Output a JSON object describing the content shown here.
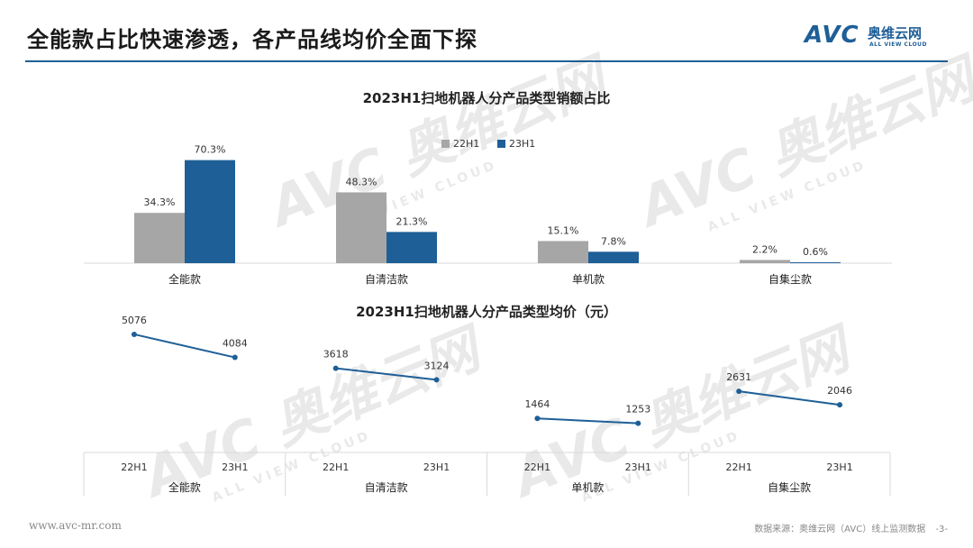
{
  "header": {
    "title": "全能款占比快速渗透，各产品线均价全面下探",
    "logo_mark": "AVC",
    "logo_cn": "奥维云网",
    "logo_en": "ALL VIEW CLOUD"
  },
  "watermark": {
    "main": "AVC 奥维云网",
    "sub": "ALL VIEW CLOUD"
  },
  "colors": {
    "series_22h1": "#a6a6a6",
    "series_23h1": "#1e5f97",
    "line": "#1e5f97",
    "rule": "#1e5f97"
  },
  "chart_data": [
    {
      "type": "bar",
      "title": "2023H1扫地机器人分产品类型销额占比",
      "legend_position": "top-right",
      "categories": [
        "全能款",
        "自清洁款",
        "单机款",
        "自集尘款"
      ],
      "series": [
        {
          "name": "22H1",
          "values": [
            34.3,
            48.3,
            15.1,
            2.2
          ],
          "labels": [
            "34.3%",
            "48.3%",
            "15.1%",
            "2.2%"
          ]
        },
        {
          "name": "23H1",
          "values": [
            70.3,
            21.3,
            7.8,
            0.6
          ],
          "labels": [
            "70.3%",
            "21.3%",
            "7.8%",
            "0.6%"
          ]
        }
      ],
      "ylim": [
        0,
        75
      ]
    },
    {
      "type": "line",
      "title": "2023H1扫地机器人分产品类型均价（元）",
      "groups": [
        {
          "category": "全能款",
          "x": [
            "22H1",
            "23H1"
          ],
          "values": [
            5076,
            4084
          ]
        },
        {
          "category": "自清洁款",
          "x": [
            "22H1",
            "23H1"
          ],
          "values": [
            3618,
            3124
          ]
        },
        {
          "category": "单机款",
          "x": [
            "22H1",
            "23H1"
          ],
          "values": [
            1464,
            1253
          ]
        },
        {
          "category": "自集尘款",
          "x": [
            "22H1",
            "23H1"
          ],
          "values": [
            2631,
            2046
          ]
        }
      ],
      "ylim": [
        0,
        5500
      ]
    }
  ],
  "footer": {
    "website": "www.avc-mr.com",
    "source": "数据来源：奥维云网（AVC）线上监测数据",
    "page": "-3-"
  }
}
